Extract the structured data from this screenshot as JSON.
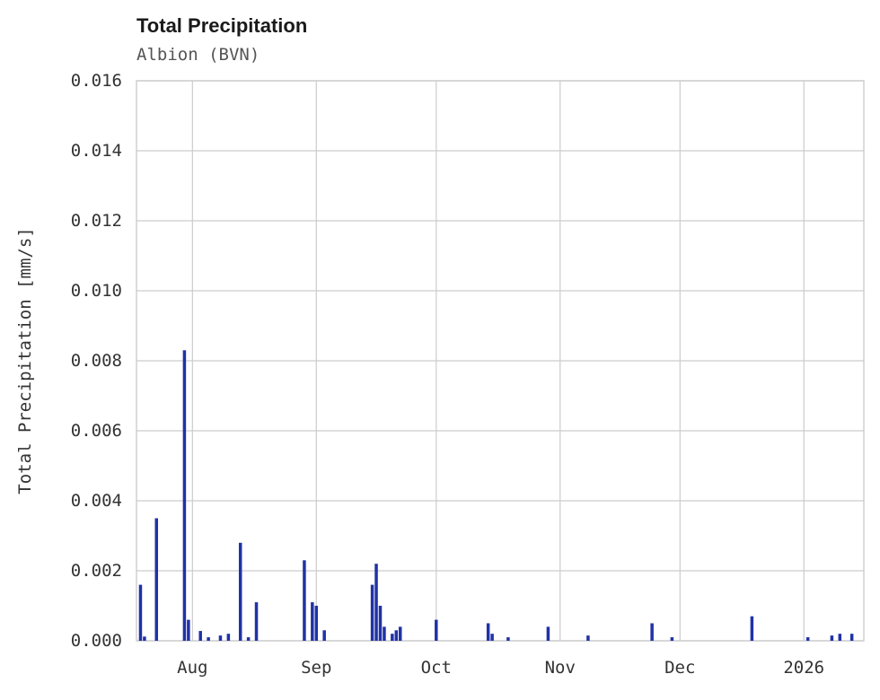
{
  "header": {
    "title": "Total Precipitation",
    "subtitle": "Albion (BVN)"
  },
  "chart_data": {
    "type": "bar",
    "title": "Total Precipitation",
    "subtitle": "Albion (BVN)",
    "xlabel": "",
    "ylabel": "Total Precipitation [mm/s]",
    "ylim": [
      0,
      0.016
    ],
    "grid": true,
    "legend": false,
    "bar_color": "#2132a5",
    "grid_color": "#cccccc",
    "tick_label_color": "#333333",
    "y_ticks": [
      0.0,
      0.002,
      0.004,
      0.006,
      0.008,
      0.01,
      0.012,
      0.014,
      0.016
    ],
    "y_tick_labels": [
      "0.000",
      "0.002",
      "0.004",
      "0.006",
      "0.008",
      "0.010",
      "0.012",
      "0.014",
      "0.016"
    ],
    "x_domain": [
      "2025-07-18",
      "2026-01-16"
    ],
    "x_ticks": [
      {
        "date": "2025-08-01",
        "label": "Aug"
      },
      {
        "date": "2025-09-01",
        "label": "Sep"
      },
      {
        "date": "2025-10-01",
        "label": "Oct"
      },
      {
        "date": "2025-11-01",
        "label": "Nov"
      },
      {
        "date": "2025-12-01",
        "label": "Dec"
      },
      {
        "date": "2026-01-01",
        "label": "2026"
      }
    ],
    "points": [
      {
        "date": "2025-07-19",
        "value": 0.0016
      },
      {
        "date": "2025-07-20",
        "value": 0.00012
      },
      {
        "date": "2025-07-23",
        "value": 0.0035
      },
      {
        "date": "2025-07-30",
        "value": 0.0083
      },
      {
        "date": "2025-07-31",
        "value": 0.0006
      },
      {
        "date": "2025-08-03",
        "value": 0.00028
      },
      {
        "date": "2025-08-05",
        "value": 0.0001
      },
      {
        "date": "2025-08-08",
        "value": 0.00015
      },
      {
        "date": "2025-08-10",
        "value": 0.0002
      },
      {
        "date": "2025-08-13",
        "value": 0.0028
      },
      {
        "date": "2025-08-15",
        "value": 0.0001
      },
      {
        "date": "2025-08-17",
        "value": 0.0011
      },
      {
        "date": "2025-08-29",
        "value": 0.0023
      },
      {
        "date": "2025-08-31",
        "value": 0.0011
      },
      {
        "date": "2025-09-01",
        "value": 0.001
      },
      {
        "date": "2025-09-03",
        "value": 0.0003
      },
      {
        "date": "2025-09-15",
        "value": 0.0016
      },
      {
        "date": "2025-09-16",
        "value": 0.0022
      },
      {
        "date": "2025-09-17",
        "value": 0.001
      },
      {
        "date": "2025-09-18",
        "value": 0.0004
      },
      {
        "date": "2025-09-20",
        "value": 0.0002
      },
      {
        "date": "2025-09-21",
        "value": 0.0003
      },
      {
        "date": "2025-09-22",
        "value": 0.0004
      },
      {
        "date": "2025-10-01",
        "value": 0.0006
      },
      {
        "date": "2025-10-14",
        "value": 0.0005
      },
      {
        "date": "2025-10-15",
        "value": 0.0002
      },
      {
        "date": "2025-10-19",
        "value": 0.0001
      },
      {
        "date": "2025-10-29",
        "value": 0.0004
      },
      {
        "date": "2025-11-08",
        "value": 0.00015
      },
      {
        "date": "2025-11-24",
        "value": 0.0005
      },
      {
        "date": "2025-11-29",
        "value": 0.0001
      },
      {
        "date": "2025-12-19",
        "value": 0.0007
      },
      {
        "date": "2026-01-02",
        "value": 0.0001
      },
      {
        "date": "2026-01-08",
        "value": 0.00015
      },
      {
        "date": "2026-01-10",
        "value": 0.0002
      },
      {
        "date": "2026-01-13",
        "value": 0.0002
      }
    ]
  }
}
